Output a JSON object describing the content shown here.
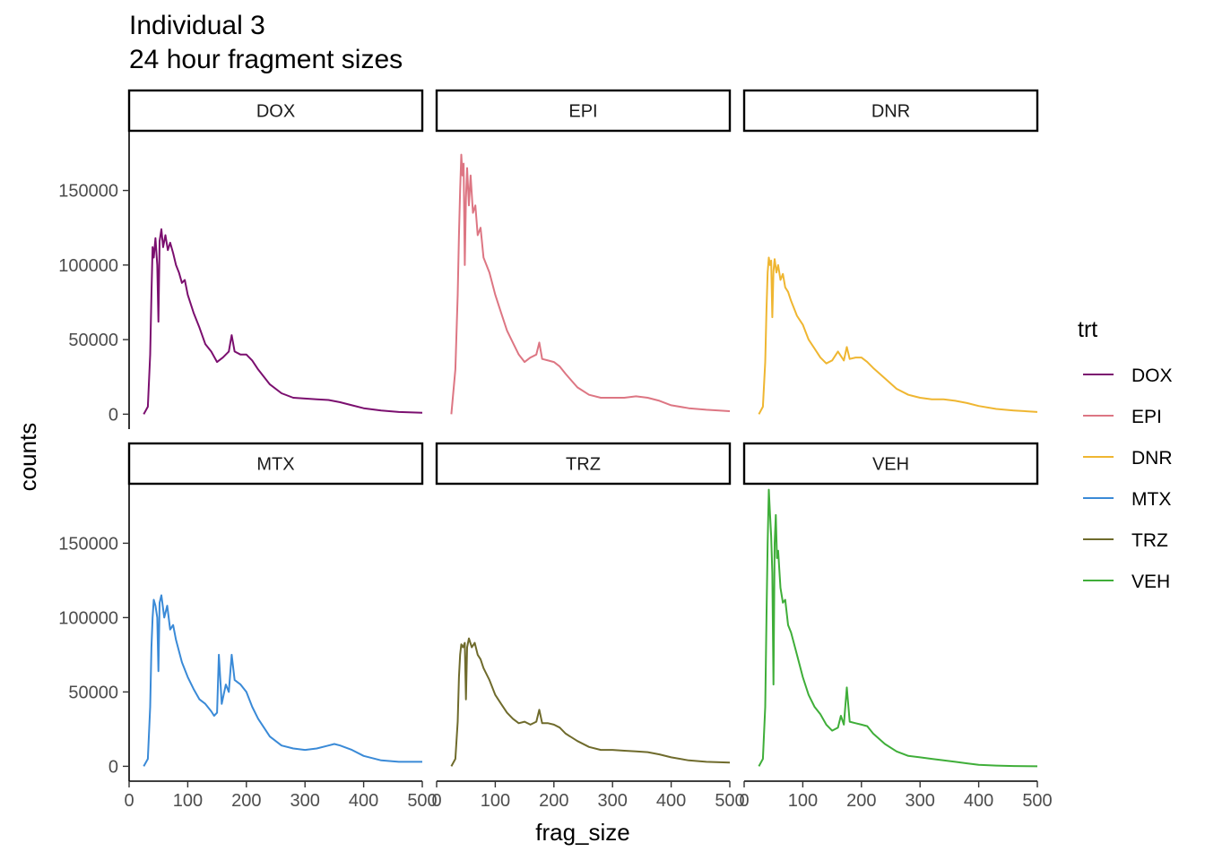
{
  "title": "Individual 3",
  "subtitle": "24 hour fragment sizes",
  "chart_data": {
    "type": "line",
    "facet_layout": "2x3",
    "xlabel": "frag_size",
    "ylabel": "counts",
    "xlim": [
      0,
      500
    ],
    "ylim": [
      -10000,
      190000
    ],
    "x_ticks": [
      0,
      100,
      200,
      300,
      400,
      500
    ],
    "y_ticks": [
      0,
      50000,
      100000,
      150000
    ],
    "y_tick_labels": [
      "0",
      "50000",
      "100000",
      "150000"
    ],
    "legend": {
      "title": "trt",
      "placement": "right",
      "entries": [
        {
          "label": "DOX",
          "color": "#7B0F6F"
        },
        {
          "label": "EPI",
          "color": "#DD7683"
        },
        {
          "label": "DNR",
          "color": "#EFB631"
        },
        {
          "label": "MTX",
          "color": "#3A8AD7"
        },
        {
          "label": "TRZ",
          "color": "#6F6B2C"
        },
        {
          "label": "VEH",
          "color": "#3FAE39"
        }
      ]
    },
    "panels": [
      {
        "label": "DOX",
        "color": "#7B0F6F",
        "x": [
          25,
          32,
          36,
          38,
          40,
          42,
          45,
          48,
          50,
          52,
          55,
          58,
          62,
          66,
          70,
          75,
          80,
          85,
          90,
          95,
          100,
          110,
          120,
          130,
          140,
          150,
          160,
          170,
          175,
          180,
          190,
          200,
          210,
          220,
          240,
          260,
          280,
          300,
          320,
          340,
          360,
          380,
          400,
          430,
          460,
          500
        ],
        "y": [
          0,
          5000,
          40000,
          80000,
          112000,
          105000,
          118000,
          100000,
          62000,
          116000,
          124000,
          112000,
          120000,
          110000,
          115000,
          108000,
          100000,
          95000,
          88000,
          90000,
          80000,
          68000,
          58000,
          47000,
          42000,
          35000,
          38000,
          42000,
          53000,
          42000,
          40000,
          40000,
          36000,
          30000,
          20000,
          14000,
          11000,
          10500,
          10000,
          9500,
          8000,
          6000,
          4000,
          2500,
          1500,
          1000
        ]
      },
      {
        "label": "EPI",
        "color": "#DD7683",
        "x": [
          25,
          32,
          36,
          38,
          40,
          42,
          44,
          46,
          48,
          50,
          52,
          55,
          58,
          62,
          66,
          70,
          75,
          80,
          90,
          100,
          110,
          120,
          130,
          140,
          150,
          160,
          170,
          175,
          180,
          190,
          200,
          210,
          220,
          240,
          260,
          280,
          300,
          320,
          340,
          360,
          380,
          400,
          430,
          460,
          500
        ],
        "y": [
          0,
          30000,
          80000,
          120000,
          150000,
          174000,
          160000,
          168000,
          100000,
          145000,
          165000,
          140000,
          160000,
          135000,
          140000,
          120000,
          125000,
          105000,
          95000,
          80000,
          68000,
          56000,
          48000,
          40000,
          35000,
          38000,
          40000,
          48000,
          37000,
          36000,
          35000,
          32000,
          27000,
          18000,
          13000,
          11000,
          11000,
          11000,
          12000,
          11000,
          9000,
          6000,
          4000,
          3000,
          2000
        ]
      },
      {
        "label": "DNR",
        "color": "#EFB631",
        "x": [
          25,
          32,
          36,
          38,
          40,
          42,
          44,
          46,
          48,
          50,
          52,
          55,
          58,
          62,
          66,
          70,
          75,
          80,
          90,
          100,
          110,
          120,
          130,
          140,
          150,
          160,
          170,
          175,
          180,
          190,
          200,
          210,
          220,
          240,
          260,
          280,
          300,
          320,
          340,
          360,
          380,
          400,
          430,
          460,
          500
        ],
        "y": [
          0,
          5000,
          35000,
          70000,
          95000,
          105000,
          100000,
          103000,
          65000,
          96000,
          104000,
          95000,
          100000,
          90000,
          94000,
          85000,
          82000,
          76000,
          66000,
          60000,
          50000,
          44000,
          38000,
          34000,
          36000,
          42000,
          36000,
          45000,
          37000,
          38000,
          38000,
          35000,
          31000,
          24000,
          17000,
          13000,
          11000,
          10000,
          10000,
          9000,
          7500,
          5500,
          3500,
          2500,
          1500
        ]
      },
      {
        "label": "MTX",
        "color": "#3A8AD7",
        "x": [
          25,
          32,
          36,
          38,
          40,
          42,
          45,
          48,
          50,
          52,
          55,
          60,
          65,
          70,
          75,
          80,
          90,
          100,
          110,
          120,
          130,
          140,
          145,
          150,
          153,
          158,
          165,
          170,
          175,
          180,
          190,
          200,
          210,
          220,
          240,
          260,
          280,
          300,
          320,
          340,
          350,
          360,
          380,
          400,
          430,
          460,
          500
        ],
        "y": [
          0,
          5000,
          40000,
          80000,
          100000,
          112000,
          108000,
          100000,
          64000,
          110000,
          115000,
          100000,
          108000,
          92000,
          95000,
          85000,
          70000,
          60000,
          52000,
          45000,
          42000,
          37000,
          34000,
          36000,
          75000,
          42000,
          55000,
          50000,
          75000,
          58000,
          55000,
          50000,
          40000,
          32000,
          20000,
          14000,
          12000,
          11000,
          12000,
          14000,
          15000,
          14000,
          11000,
          7000,
          4000,
          3000,
          3000
        ]
      },
      {
        "label": "TRZ",
        "color": "#6F6B2C",
        "x": [
          25,
          32,
          36,
          38,
          40,
          42,
          45,
          48,
          50,
          52,
          55,
          60,
          65,
          70,
          75,
          80,
          90,
          100,
          110,
          120,
          130,
          140,
          150,
          160,
          170,
          175,
          180,
          190,
          200,
          210,
          220,
          240,
          260,
          280,
          300,
          320,
          340,
          360,
          380,
          400,
          430,
          460,
          500
        ],
        "y": [
          0,
          5000,
          30000,
          60000,
          75000,
          82000,
          80000,
          83000,
          45000,
          80000,
          86000,
          80000,
          83000,
          75000,
          72000,
          66000,
          58000,
          48000,
          42000,
          36000,
          32000,
          29000,
          30000,
          28000,
          30000,
          38000,
          29000,
          29000,
          28000,
          26000,
          22000,
          17000,
          13000,
          11000,
          11000,
          10500,
          10000,
          9500,
          8000,
          6000,
          4000,
          3000,
          2500
        ]
      },
      {
        "label": "VEH",
        "color": "#3FAE39",
        "x": [
          25,
          32,
          36,
          38,
          40,
          42,
          44,
          46,
          48,
          50,
          52,
          54,
          56,
          58,
          62,
          66,
          70,
          75,
          80,
          90,
          100,
          110,
          120,
          130,
          140,
          150,
          160,
          165,
          170,
          175,
          180,
          190,
          200,
          210,
          220,
          240,
          260,
          280,
          300,
          320,
          340,
          360,
          380,
          400,
          430,
          460,
          500
        ],
        "y": [
          0,
          5000,
          40000,
          100000,
          150000,
          186000,
          170000,
          155000,
          130000,
          55000,
          150000,
          169000,
          140000,
          145000,
          120000,
          110000,
          112000,
          95000,
          90000,
          75000,
          60000,
          48000,
          40000,
          35000,
          28000,
          24000,
          26000,
          34000,
          28000,
          53000,
          30000,
          29000,
          28000,
          27000,
          22000,
          15000,
          10000,
          7000,
          6000,
          5000,
          4000,
          3000,
          2000,
          1000,
          500,
          200,
          0
        ]
      }
    ]
  }
}
